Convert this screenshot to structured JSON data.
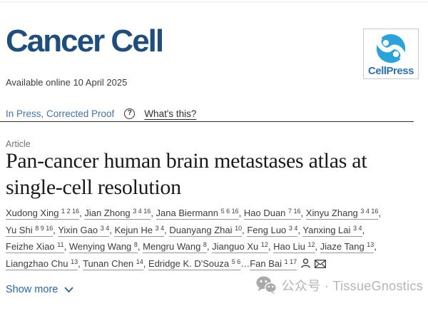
{
  "journal_name": "Cancer Cell",
  "publisher_name": "CellPress",
  "available_online": "Available online 10 April 2025",
  "status": {
    "in_press_label": "In Press, Corrected Proof",
    "help_glyph": "?",
    "help_icon": "question-circle-icon",
    "whats_this_label": "What's this?"
  },
  "article": {
    "kind": "Article",
    "title": "Pan-cancer human brain metastases atlas at single-cell resolution"
  },
  "authors": {
    "list": [
      {
        "name": "Xudong Xing",
        "sup": "1 2 16",
        "suffix": ", "
      },
      {
        "name": "Jian Zhong",
        "sup": "3 4 16",
        "suffix": ", "
      },
      {
        "name": "Jana Biermann",
        "sup": "5 6 16",
        "suffix": ", "
      },
      {
        "name": "Hao Duan",
        "sup": "7 16",
        "suffix": ", "
      },
      {
        "name": "Xinyu Zhang",
        "sup": "3 4 16",
        "suffix": ", "
      },
      {
        "name": "Yu Shi",
        "sup": "8 9 16",
        "suffix": ", "
      },
      {
        "name": "Yixin Gao",
        "sup": "3 4",
        "suffix": ", "
      },
      {
        "name": "Kejun He",
        "sup": "3 4",
        "suffix": ", "
      },
      {
        "name": "Duanyang Zhai",
        "sup": "10",
        "suffix": ", "
      },
      {
        "name": "Feng Luo",
        "sup": "3 4",
        "suffix": ", "
      },
      {
        "name": "Yanxing Lai",
        "sup": "3 4",
        "suffix": ", "
      },
      {
        "name": "Feizhe Xiao",
        "sup": "11",
        "suffix": ", "
      },
      {
        "name": "Wenying Wang",
        "sup": "8",
        "suffix": ", "
      },
      {
        "name": "Mengru Wang",
        "sup": "8",
        "suffix": ", "
      },
      {
        "name": "Jianguo Xu",
        "sup": "12",
        "suffix": ", "
      },
      {
        "name": "Hao Liu",
        "sup": "12",
        "suffix": ", "
      },
      {
        "name": "Jiaze Tang",
        "sup": "13",
        "suffix": ", "
      },
      {
        "name": "Liangzhao Chu",
        "sup": "13",
        "suffix": ", "
      },
      {
        "name": "Tunan Chen",
        "sup": "14",
        "suffix": ", "
      },
      {
        "name": "Edridge K. D'Souza",
        "sup": "5 6",
        "suffix": "…"
      },
      {
        "name": "Fan Bai",
        "sup": "1 17",
        "suffix": ""
      }
    ],
    "corresponding_icons": [
      "person-icon",
      "envelope-icon"
    ]
  },
  "show_more_label": "Show more",
  "watermark_text": "公众号 · TissueGnostics",
  "colors": {
    "journal_navy": "#1e4e7e",
    "cellpress_icon_blue": "#29a3d9",
    "cellpress_text_blue": "#2e72b8",
    "link_blue": "#4274a9",
    "show_more_blue": "#2866a7",
    "watermark_gray": "#b5b5b5"
  }
}
